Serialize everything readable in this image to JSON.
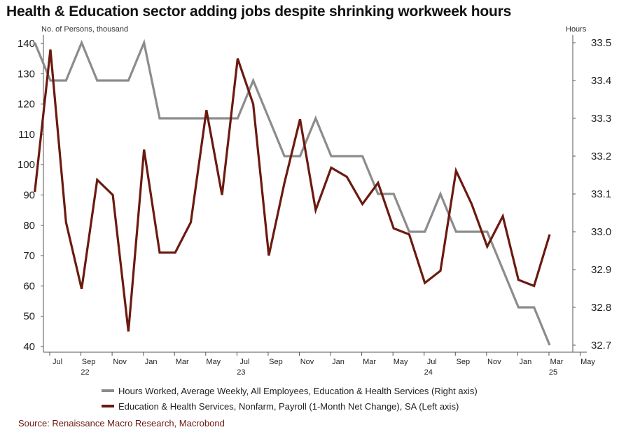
{
  "title": "Health & Education sector adding jobs despite shrinking workweek hours",
  "left_axis_unit": "No. of Persons, thousand",
  "right_axis_unit": "Hours",
  "source": "Source: Renaissance Macro Research, Macrobond",
  "colors": {
    "hours": "#8c8c8c",
    "payroll": "#6b1a10",
    "axis": "#555555",
    "source": "#6b1a10"
  },
  "chart_data": {
    "type": "line",
    "x_ticks": [
      "Jul",
      "Sep",
      "Nov",
      "Jan",
      "Mar",
      "May",
      "Jul",
      "Sep",
      "Nov",
      "Jan",
      "Mar",
      "May",
      "Jul",
      "Sep",
      "Nov",
      "Jan",
      "Mar",
      "May"
    ],
    "year_labels": [
      {
        "label": "22",
        "month": "2022-09"
      },
      {
        "label": "23",
        "month": "2023-07"
      },
      {
        "label": "24",
        "month": "2024-07"
      },
      {
        "label": "25",
        "month": "2025-03"
      }
    ],
    "x_range": [
      "2022-06",
      "2025-05"
    ],
    "left_axis": {
      "ylim": [
        40,
        140
      ],
      "ticks": [
        40,
        50,
        60,
        70,
        80,
        90,
        100,
        110,
        120,
        130,
        140
      ]
    },
    "right_axis": {
      "ylim": [
        32.7,
        33.5
      ],
      "ticks": [
        "32.7",
        "32.8",
        "32.9",
        "33.0",
        "33.1",
        "33.2",
        "33.3",
        "33.4",
        "33.5"
      ]
    },
    "grid": false,
    "legend_position": "bottom",
    "series": [
      {
        "name": "Hours Worked, Average Weekly, All Employees, Education & Health Services (Right axis)",
        "axis": "right",
        "x": [
          "2022-06",
          "2022-07",
          "2022-08",
          "2022-09",
          "2022-10",
          "2022-11",
          "2022-12",
          "2023-01",
          "2023-02",
          "2023-03",
          "2023-04",
          "2023-05",
          "2023-06",
          "2023-07",
          "2023-08",
          "2023-09",
          "2023-10",
          "2023-11",
          "2023-12",
          "2024-01",
          "2024-02",
          "2024-03",
          "2024-04",
          "2024-05",
          "2024-06",
          "2024-07",
          "2024-08",
          "2024-09",
          "2024-10",
          "2024-11",
          "2024-12",
          "2025-01",
          "2025-02",
          "2025-03"
        ],
        "values": [
          33.5,
          33.4,
          33.4,
          33.5,
          33.4,
          33.4,
          33.4,
          33.5,
          33.3,
          33.3,
          33.3,
          33.3,
          33.3,
          33.3,
          33.4,
          33.3,
          33.2,
          33.2,
          33.3,
          33.2,
          33.2,
          33.2,
          33.1,
          33.1,
          33.0,
          33.0,
          33.1,
          33.0,
          33.0,
          33.0,
          32.9,
          32.8,
          32.8,
          32.7
        ]
      },
      {
        "name": "Education & Health Services, Nonfarm, Payroll (1-Month Net Change), SA (Left axis)",
        "axis": "left",
        "x": [
          "2022-06",
          "2022-07",
          "2022-08",
          "2022-09",
          "2022-10",
          "2022-11",
          "2022-12",
          "2023-01",
          "2023-02",
          "2023-03",
          "2023-04",
          "2023-05",
          "2023-06",
          "2023-07",
          "2023-08",
          "2023-09",
          "2023-10",
          "2023-11",
          "2023-12",
          "2024-01",
          "2024-02",
          "2024-03",
          "2024-04",
          "2024-05",
          "2024-06",
          "2024-07",
          "2024-08",
          "2024-09",
          "2024-10",
          "2024-11",
          "2024-12",
          "2025-01",
          "2025-02",
          "2025-03"
        ],
        "values": [
          91,
          138,
          81,
          59,
          95,
          90,
          45,
          105,
          71,
          71,
          81,
          118,
          90,
          135,
          120,
          70,
          94,
          115,
          85,
          99,
          96,
          87,
          94,
          79,
          77,
          61,
          65,
          98,
          87,
          73,
          83,
          62,
          60,
          77
        ]
      }
    ]
  }
}
